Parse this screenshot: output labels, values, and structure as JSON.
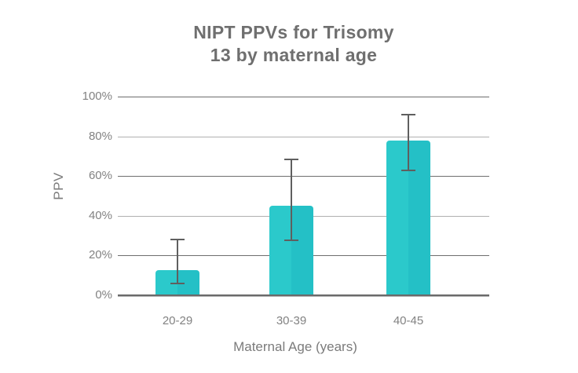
{
  "chart_data": {
    "type": "bar",
    "title_lines": [
      "NIPT PPVs for Trisomy",
      "13 by maternal age"
    ],
    "xlabel": "Maternal Age (years)",
    "ylabel": "PPV",
    "categories": [
      "20-29",
      "30-39",
      "40-45"
    ],
    "values": [
      12.5,
      45,
      78
    ],
    "error_low": [
      6,
      27.5,
      63
    ],
    "error_high": [
      28,
      68.5,
      91
    ],
    "y_ticks": [
      {
        "label": "0%",
        "value": 0
      },
      {
        "label": "20%",
        "value": 20
      },
      {
        "label": "40%",
        "value": 40
      },
      {
        "label": "60%",
        "value": 60
      },
      {
        "label": "80%",
        "value": 80
      },
      {
        "label": "100%",
        "value": 100
      }
    ],
    "ylim": [
      0,
      100
    ],
    "grid": "horizontal",
    "legend": "none",
    "colors": {
      "background": "#ffffff",
      "bar_left": "#2bc9cb",
      "bar_right": "#24c0c6",
      "gridline_dark": "#6e6e6e",
      "gridline_light": "#b0b0b0",
      "axis_line_dark": "#6a6a6a",
      "axis_line_light": "#b0b0b0",
      "error_bar": "#5f5f5f",
      "title_text": "#6f6f6f",
      "tick_text": "#828282",
      "axis_title_text": "#7b7b7b"
    }
  }
}
